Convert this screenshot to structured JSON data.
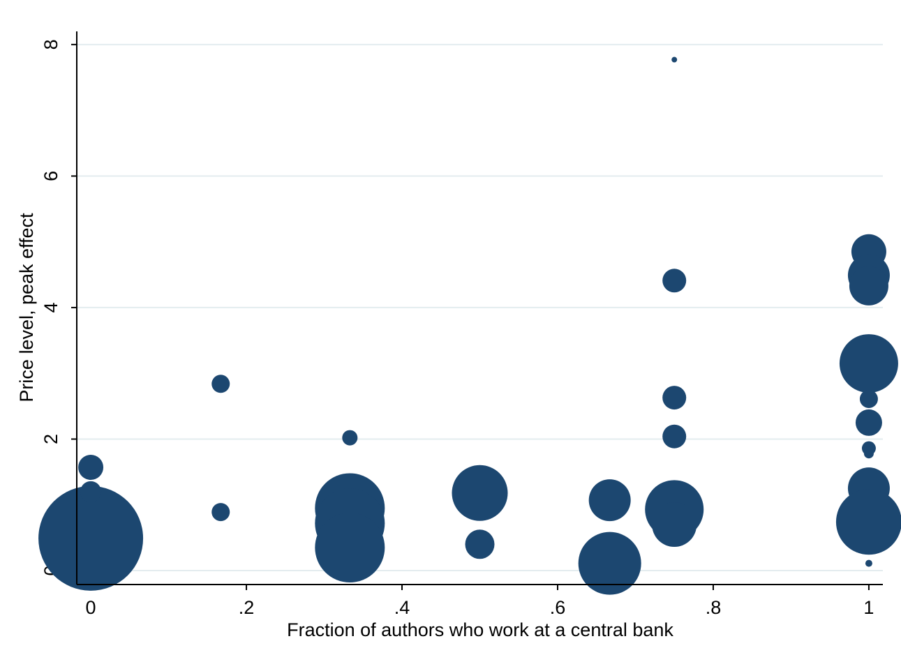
{
  "chart_data": {
    "type": "scatter",
    "x_label": "Fraction of authors who work at a central bank",
    "y_label": "Price level, peak effect",
    "x": [
      0,
      0,
      0,
      0.167,
      0.167,
      0.333,
      0.333,
      0.333,
      0.333,
      0.5,
      0.5,
      0.667,
      0.667,
      0.75,
      0.75,
      0.75,
      0.75,
      0.75,
      0.75,
      1,
      1,
      1,
      1,
      1,
      1,
      1,
      1,
      1,
      1,
      1
    ],
    "values": [
      0.49,
      1.57,
      1.2,
      2.84,
      0.89,
      2.02,
      0.95,
      0.72,
      0.35,
      1.18,
      0.4,
      1.07,
      0.11,
      7.77,
      4.41,
      2.63,
      2.04,
      0.93,
      0.7,
      4.85,
      4.49,
      4.33,
      3.15,
      2.61,
      2.25,
      1.86,
      1.78,
      1.25,
      0.74,
      0.11
    ],
    "size": [
      75,
      18,
      15,
      13,
      13,
      11,
      50,
      50,
      50,
      40,
      21,
      30,
      45,
      4,
      17,
      17,
      17,
      42,
      32,
      25,
      30,
      28,
      42,
      13,
      19,
      10,
      7,
      30,
      47,
      5
    ],
    "color": "#1c4770",
    "xlim": [
      -0.018,
      1.018
    ],
    "ylim": [
      -0.212,
      8.2
    ],
    "xticks": [
      0,
      {
        "value": 0.2,
        "label": ".2"
      },
      {
        "value": 0.4,
        "label": ".4"
      },
      {
        "value": 0.6,
        "label": ".6"
      },
      {
        "value": 0.8,
        "label": ".8"
      },
      1
    ],
    "yticks": [
      0,
      2,
      4,
      6,
      8
    ],
    "grid": true
  }
}
